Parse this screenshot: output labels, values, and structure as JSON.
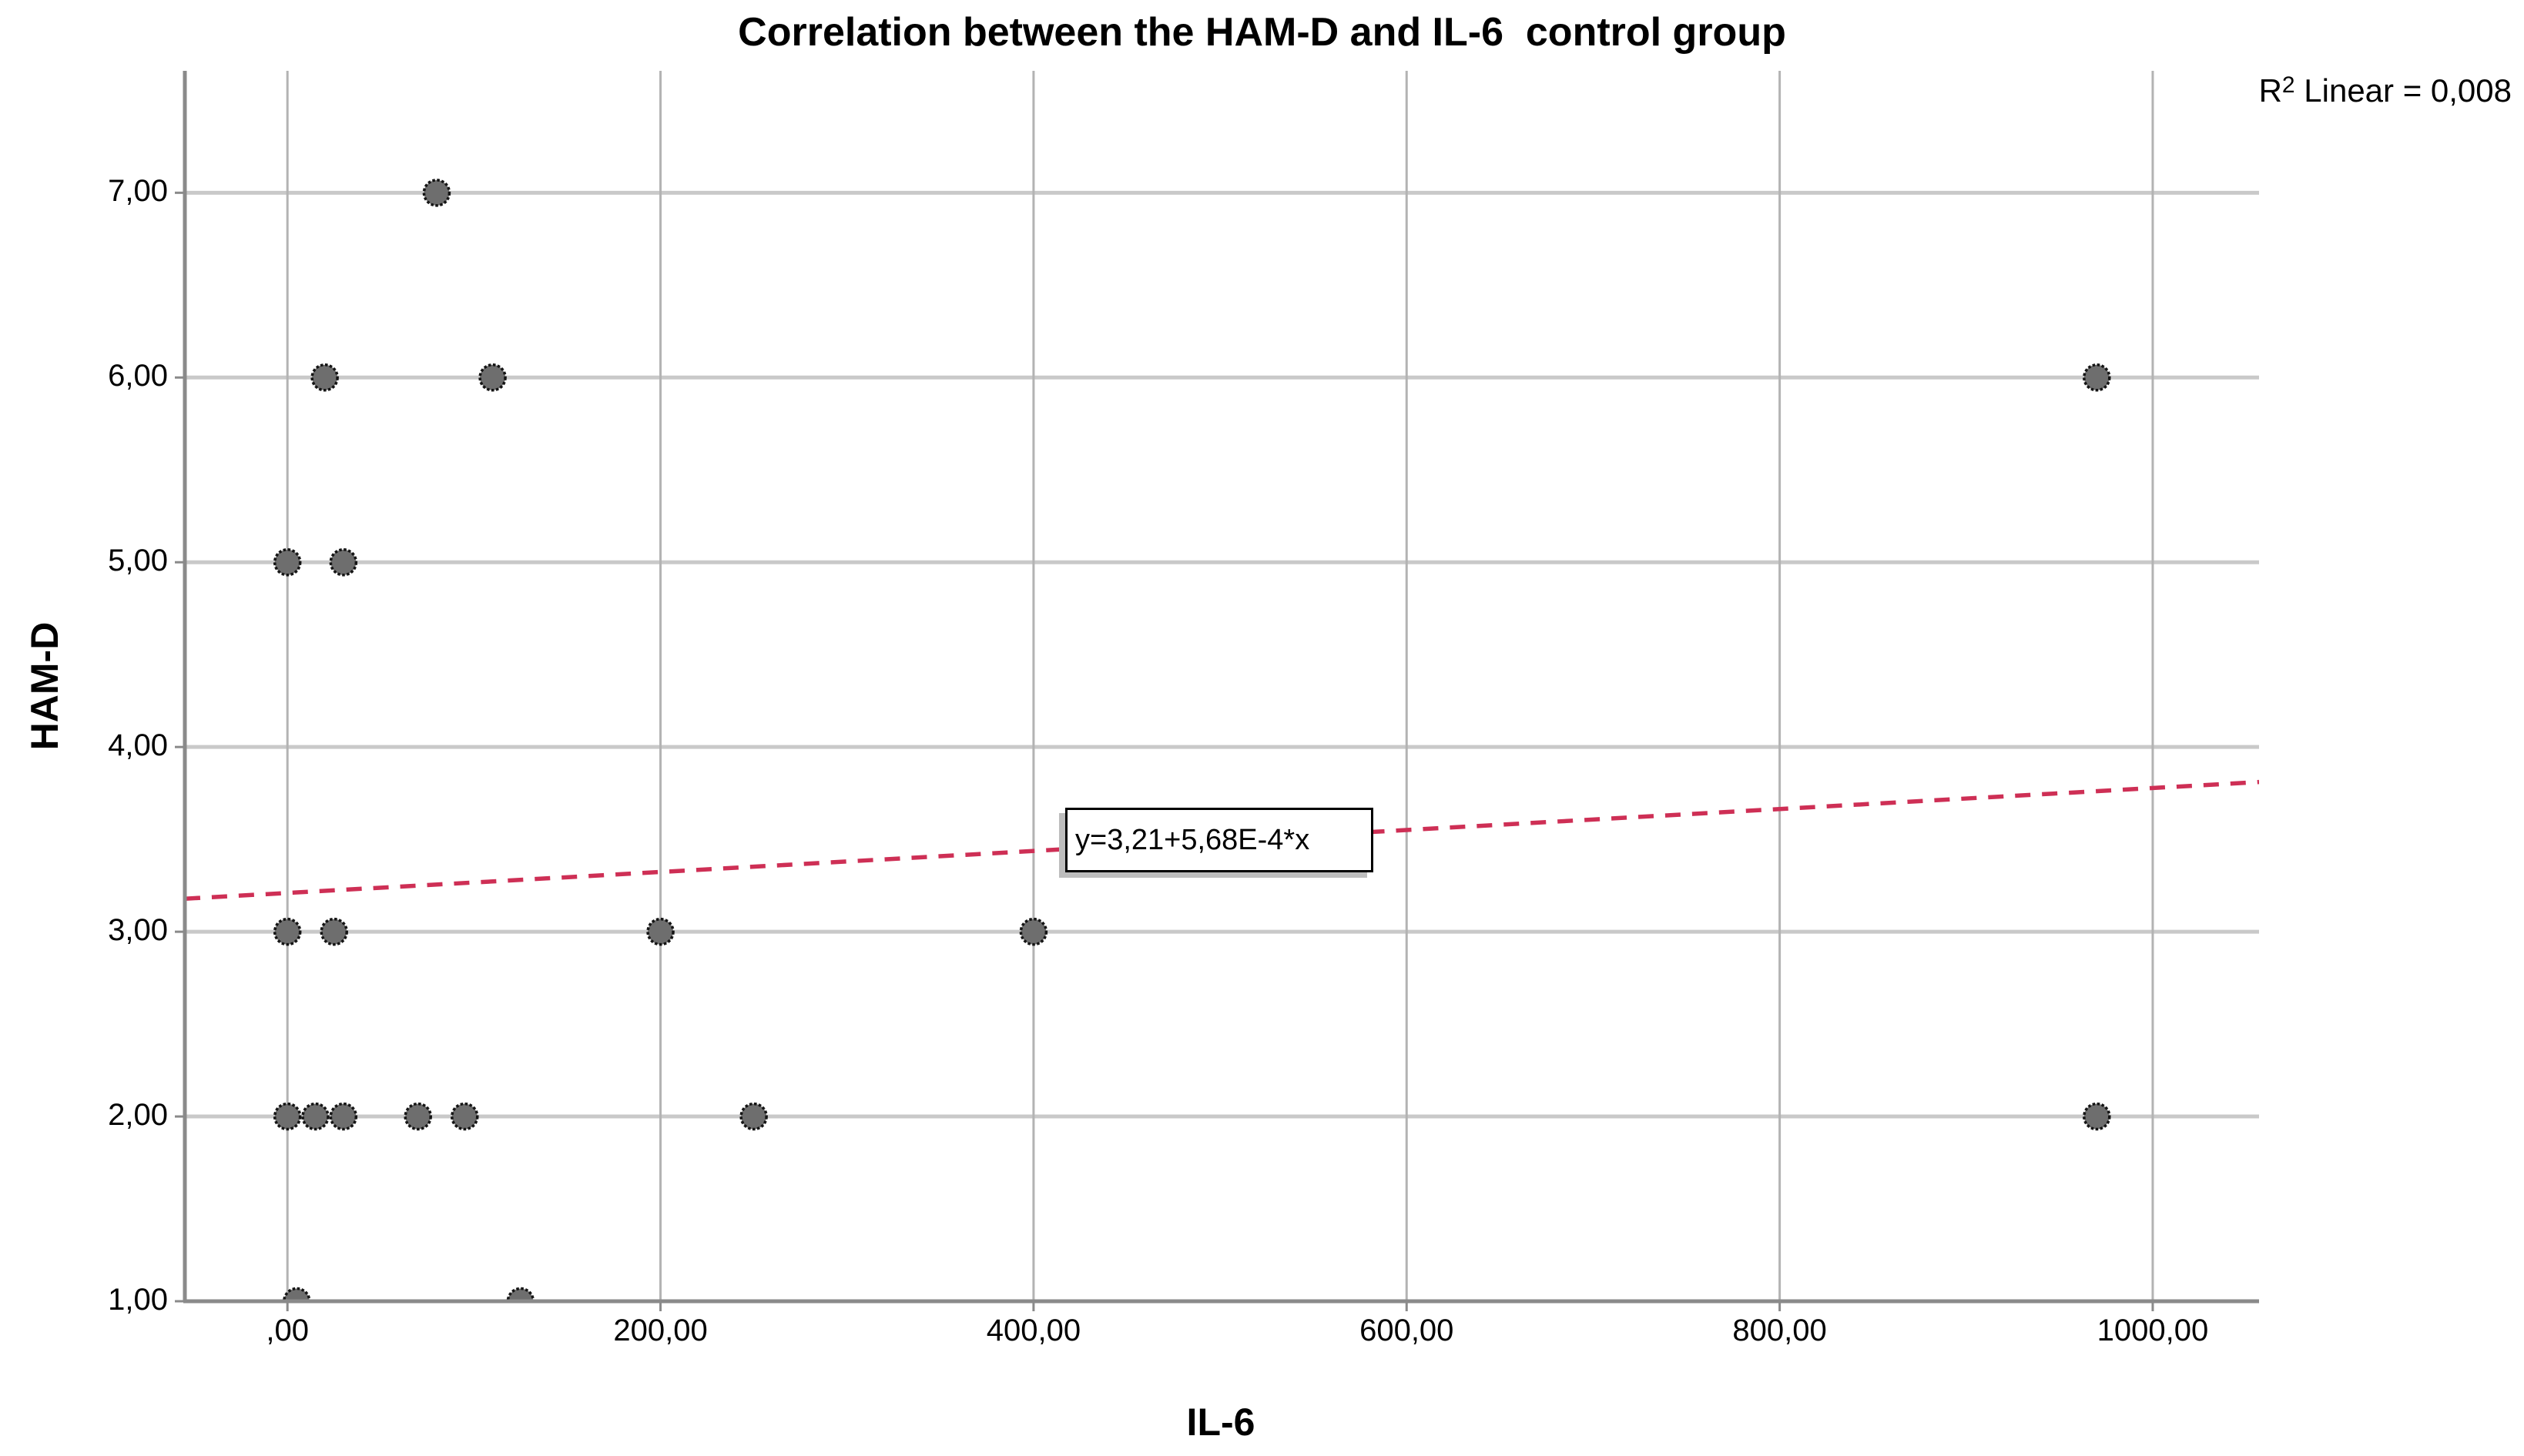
{
  "title": "Correlation between the HAM-D and IL-6  control group",
  "r2": {
    "base": "R",
    "sup": "2",
    "rest": " Linear = 0,008"
  },
  "equation_label": "y=3,21+5,68E-4*x",
  "chart_data": {
    "type": "scatter",
    "title": "Correlation between the HAM-D and IL-6  control group",
    "xlabel": "IL-6",
    "ylabel": "HAM-D",
    "legend": "none",
    "grid": "on",
    "xlim": [
      -55,
      1057
    ],
    "ylim": [
      1,
      7.66
    ],
    "x_ticks": [
      {
        "value": 0,
        "label": ",00"
      },
      {
        "value": 200,
        "label": "200,00"
      },
      {
        "value": 400,
        "label": "400,00"
      },
      {
        "value": 600,
        "label": "600,00"
      },
      {
        "value": 800,
        "label": "800,00"
      },
      {
        "value": 1000,
        "label": "1000,00"
      }
    ],
    "y_ticks": [
      {
        "value": 1,
        "label": "1,00"
      },
      {
        "value": 2,
        "label": "2,00"
      },
      {
        "value": 3,
        "label": "3,00"
      },
      {
        "value": 4,
        "label": "4,00"
      },
      {
        "value": 5,
        "label": "5,00"
      },
      {
        "value": 6,
        "label": "6,00"
      },
      {
        "value": 7,
        "label": "7,00"
      }
    ],
    "points": [
      [
        80,
        7
      ],
      [
        20,
        6
      ],
      [
        110,
        6
      ],
      [
        970,
        6
      ],
      [
        0,
        5
      ],
      [
        30,
        5
      ],
      [
        0,
        3
      ],
      [
        25,
        3
      ],
      [
        200,
        3
      ],
      [
        400,
        3
      ],
      [
        0,
        2
      ],
      [
        15,
        2
      ],
      [
        30,
        2
      ],
      [
        70,
        2
      ],
      [
        95,
        2
      ],
      [
        250,
        2
      ],
      [
        970,
        2
      ],
      [
        5,
        1
      ],
      [
        125,
        1
      ]
    ],
    "trend": {
      "type": "linear",
      "intercept": 3.21,
      "slope": 0.000568,
      "equation": "y=3,21+5,68E-4*x",
      "r_squared": "0,008",
      "style": "dashed"
    },
    "colors": {
      "point_fill": "#6e6e6e",
      "point_stroke": "#141414",
      "trend_line": "#ce2f55",
      "grid_horizontal": "#c9c9c9",
      "grid_vertical": "#b3b3b3",
      "axis_frame": "#8a8a8a",
      "background": "#ffffff",
      "text": "#000000"
    }
  }
}
